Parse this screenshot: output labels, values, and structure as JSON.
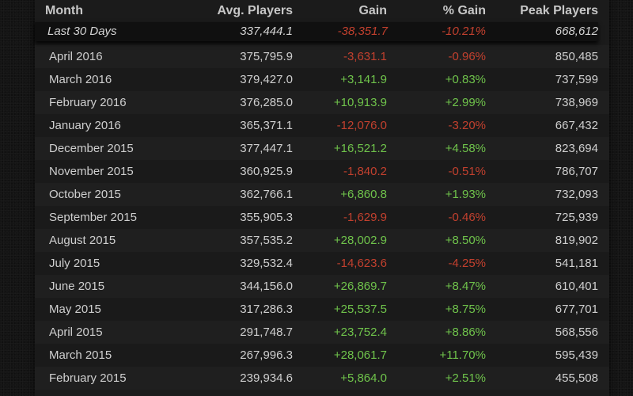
{
  "header": {
    "month": "Month",
    "avg": "Avg. Players",
    "gain": "Gain",
    "pct": "% Gain",
    "peak": "Peak Players"
  },
  "summary": {
    "month": "Last 30 Days",
    "avg": "337,444.1",
    "gain": "-38,351.7",
    "pct": "-10.21%",
    "peak": "668,612"
  },
  "rows": [
    {
      "month": "April 2016",
      "avg": "375,795.9",
      "gain": "-3,631.1",
      "pct": "-0.96%",
      "peak": "850,485"
    },
    {
      "month": "March 2016",
      "avg": "379,427.0",
      "gain": "+3,141.9",
      "pct": "+0.83%",
      "peak": "737,599"
    },
    {
      "month": "February 2016",
      "avg": "376,285.0",
      "gain": "+10,913.9",
      "pct": "+2.99%",
      "peak": "738,969"
    },
    {
      "month": "January 2016",
      "avg": "365,371.1",
      "gain": "-12,076.0",
      "pct": "-3.20%",
      "peak": "667,432"
    },
    {
      "month": "December 2015",
      "avg": "377,447.1",
      "gain": "+16,521.2",
      "pct": "+4.58%",
      "peak": "823,694"
    },
    {
      "month": "November 2015",
      "avg": "360,925.9",
      "gain": "-1,840.2",
      "pct": "-0.51%",
      "peak": "786,707"
    },
    {
      "month": "October 2015",
      "avg": "362,766.1",
      "gain": "+6,860.8",
      "pct": "+1.93%",
      "peak": "732,093"
    },
    {
      "month": "September 2015",
      "avg": "355,905.3",
      "gain": "-1,629.9",
      "pct": "-0.46%",
      "peak": "725,939"
    },
    {
      "month": "August 2015",
      "avg": "357,535.2",
      "gain": "+28,002.9",
      "pct": "+8.50%",
      "peak": "819,902"
    },
    {
      "month": "July 2015",
      "avg": "329,532.4",
      "gain": "-14,623.6",
      "pct": "-4.25%",
      "peak": "541,181"
    },
    {
      "month": "June 2015",
      "avg": "344,156.0",
      "gain": "+26,869.7",
      "pct": "+8.47%",
      "peak": "610,401"
    },
    {
      "month": "May 2015",
      "avg": "317,286.3",
      "gain": "+25,537.5",
      "pct": "+8.75%",
      "peak": "677,701"
    },
    {
      "month": "April 2015",
      "avg": "291,748.7",
      "gain": "+23,752.4",
      "pct": "+8.86%",
      "peak": "568,556"
    },
    {
      "month": "March 2015",
      "avg": "267,996.3",
      "gain": "+28,061.7",
      "pct": "+11.70%",
      "peak": "595,439"
    },
    {
      "month": "February 2015",
      "avg": "239,934.6",
      "gain": "+5,864.0",
      "pct": "+2.51%",
      "peak": "455,508"
    }
  ],
  "colors": {
    "positive": "#6fc34b",
    "negative": "#c2402e",
    "text": "#cfcfcf",
    "header_text": "#c7c7c7"
  }
}
